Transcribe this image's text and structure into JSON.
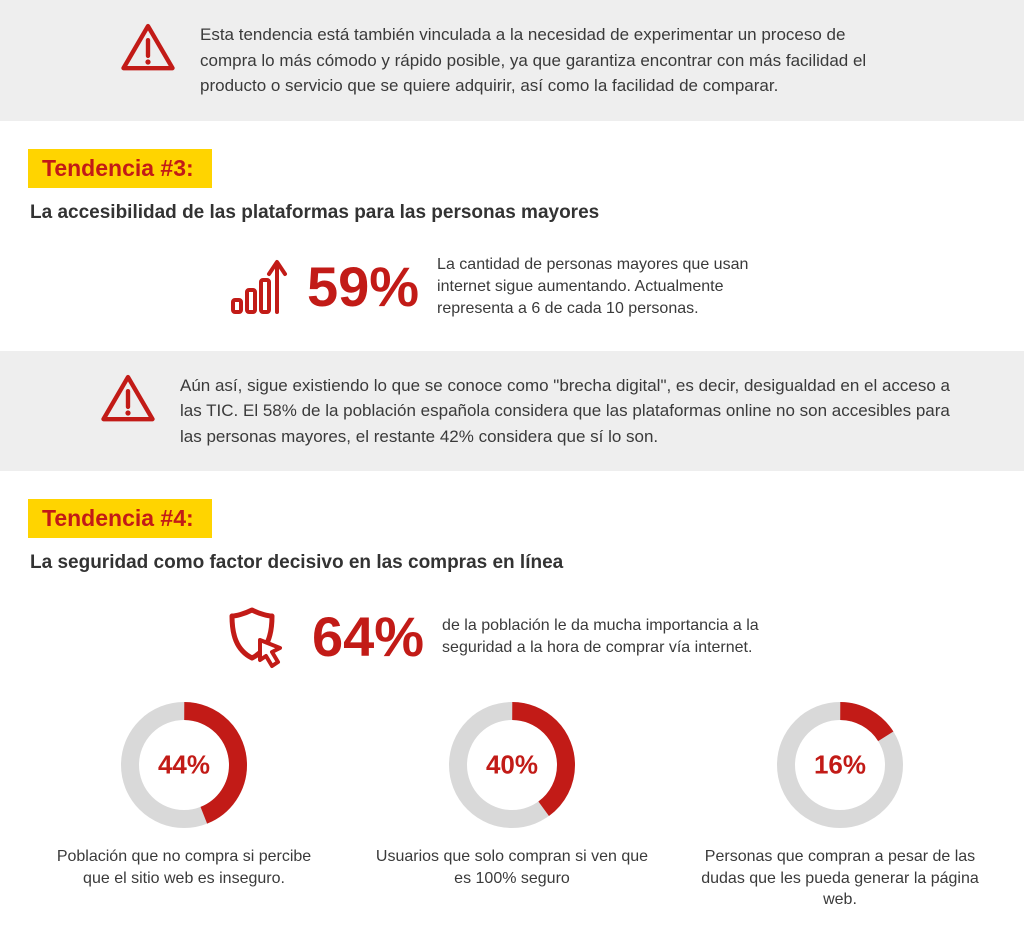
{
  "colors": {
    "accent": "#c21b17",
    "badge_bg": "#ffd400",
    "alert_bg": "#eeeeee",
    "text": "#3a3a3a",
    "donut_track": "#d9d9d9"
  },
  "alert1": {
    "text": "Esta tendencia está también vinculada a la necesidad de experimentar un proceso de compra lo más cómodo y rápido posible, ya que garantiza encontrar con más facilidad el producto o servicio que se quiere adquirir, así como la facilidad de comparar."
  },
  "trend3": {
    "badge": "Tendencia #3:",
    "subtitle": "La accesibilidad de las plataformas para las personas mayores",
    "stat": {
      "icon": "bars-arrow-up",
      "value": "59%",
      "value_fontsize": 56,
      "desc": "La cantidad de personas mayores que usan internet sigue aumentando. Actualmente representa a 6 de cada 10 personas."
    }
  },
  "alert2": {
    "text": "Aún así, sigue existiendo lo que se conoce como \"brecha digital\", es decir, desigualdad en el acceso a las TIC. El 58% de la población española considera que las plataformas online no son accesibles para las personas mayores, el restante 42% considera que sí lo son."
  },
  "trend4": {
    "badge": "Tendencia #4:",
    "subtitle": "La seguridad como factor decisivo en las compras en línea",
    "stat": {
      "icon": "shield-cursor",
      "value": "64%",
      "value_fontsize": 56,
      "desc": "de la población le da mucha importancia a la seguridad a la hora de comprar vía internet."
    },
    "donuts": [
      {
        "pct": 44,
        "label": "44%",
        "caption": "Población que no compra si percibe que el sitio web es inseguro."
      },
      {
        "pct": 40,
        "label": "40%",
        "caption": "Usuarios que solo compran si ven que es 100% seguro"
      },
      {
        "pct": 16,
        "label": "16%",
        "caption": "Personas que compran a pesar de las dudas que les pueda generar la página web."
      }
    ],
    "donut_style": {
      "track_color": "#d9d9d9",
      "fill_color": "#c21b17",
      "stroke_width": 18,
      "radius": 54,
      "start_angle_deg": 0
    }
  }
}
